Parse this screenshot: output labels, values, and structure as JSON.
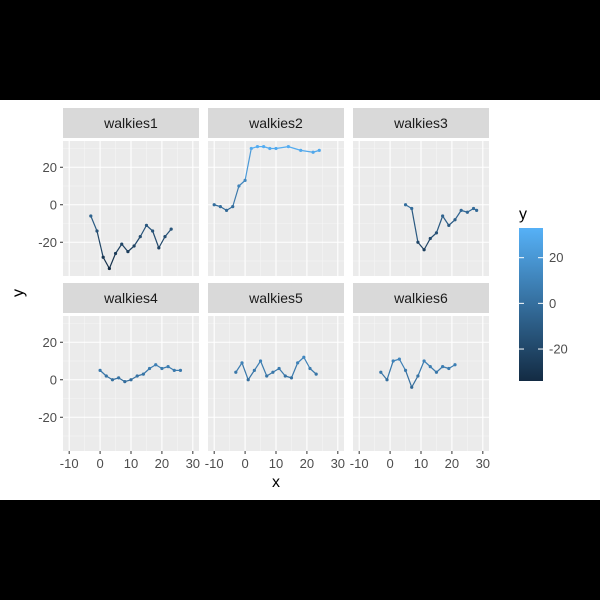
{
  "chart_data": {
    "type": "line",
    "xlabel": "x",
    "ylabel": "y",
    "xlim": [
      -12,
      32
    ],
    "ylim": [
      -38,
      34
    ],
    "x_ticks": [
      -10,
      0,
      10,
      20,
      30
    ],
    "y_ticks": [
      20,
      0,
      -20
    ],
    "grid": true,
    "legend": {
      "title": "y",
      "position": "right",
      "type": "colorbar",
      "ticks": [
        20,
        0,
        -20
      ],
      "range": [
        -34,
        33
      ],
      "low_color": "#132B43",
      "high_color": "#56B1F7"
    },
    "panels": [
      {
        "name": "walkies1",
        "x": [
          -3,
          -1,
          1,
          3,
          5,
          7,
          9,
          11,
          13,
          15,
          17,
          19,
          21,
          23
        ],
        "y": [
          -6,
          -14,
          -28,
          -34,
          -26,
          -21,
          -25,
          -22,
          -17,
          -11,
          -14,
          -23,
          -17,
          -13
        ]
      },
      {
        "name": "walkies2",
        "x": [
          -10,
          -8,
          -6,
          -4,
          -2,
          0,
          2,
          4,
          6,
          8,
          10,
          14,
          18,
          22,
          24
        ],
        "y": [
          0,
          -1,
          -3,
          -1,
          10,
          13,
          30,
          31,
          31,
          30,
          30,
          31,
          29,
          28,
          29
        ]
      },
      {
        "name": "walkies3",
        "x": [
          5,
          7,
          9,
          11,
          13,
          15,
          17,
          19,
          21,
          23,
          25,
          27,
          28
        ],
        "y": [
          0,
          -2,
          -20,
          -24,
          -18,
          -15,
          -6,
          -11,
          -8,
          -3,
          -4,
          -2,
          -3
        ]
      },
      {
        "name": "walkies4",
        "x": [
          0,
          2,
          4,
          6,
          8,
          10,
          12,
          14,
          16,
          18,
          20,
          22,
          24,
          26
        ],
        "y": [
          5,
          2,
          0,
          1,
          -1,
          0,
          2,
          3,
          6,
          8,
          6,
          7,
          5,
          5
        ]
      },
      {
        "name": "walkies5",
        "x": [
          -3,
          -1,
          1,
          3,
          5,
          7,
          9,
          11,
          13,
          15,
          17,
          19,
          21,
          23
        ],
        "y": [
          4,
          9,
          0,
          5,
          10,
          2,
          4,
          6,
          2,
          1,
          9,
          12,
          6,
          3
        ]
      },
      {
        "name": "walkies6",
        "x": [
          -3,
          -1,
          1,
          3,
          5,
          7,
          9,
          11,
          13,
          15,
          17,
          19,
          21
        ],
        "y": [
          4,
          0,
          10,
          11,
          5,
          -4,
          2,
          10,
          7,
          4,
          7,
          6,
          8
        ]
      }
    ]
  }
}
